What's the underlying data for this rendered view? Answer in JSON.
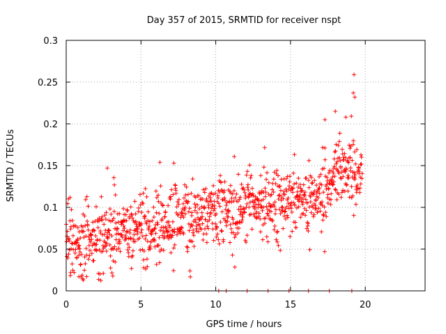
{
  "chart_data": {
    "type": "scatter",
    "title": "Day 357 of 2015, SRMTID for receiver nspt",
    "xlabel": "GPS time / hours",
    "ylabel": "SRMTID / TECUs",
    "xlim": [
      0,
      24
    ],
    "ylim": [
      0,
      0.3
    ],
    "xticks": [
      "0",
      "5",
      "10",
      "15",
      "20"
    ],
    "yticks": [
      "0",
      "0.05",
      "0.1",
      "0.15",
      "0.2",
      "0.25",
      "0.3"
    ],
    "grid": true,
    "marker": "+",
    "color": "#ff0000",
    "trend": [
      {
        "x": 0.0,
        "y": 0.06
      },
      {
        "x": 1.0,
        "y": 0.055
      },
      {
        "x": 2.0,
        "y": 0.062
      },
      {
        "x": 3.0,
        "y": 0.07
      },
      {
        "x": 4.0,
        "y": 0.072
      },
      {
        "x": 5.0,
        "y": 0.075
      },
      {
        "x": 6.0,
        "y": 0.078
      },
      {
        "x": 7.0,
        "y": 0.085
      },
      {
        "x": 8.0,
        "y": 0.088
      },
      {
        "x": 9.0,
        "y": 0.09
      },
      {
        "x": 10.0,
        "y": 0.093
      },
      {
        "x": 11.0,
        "y": 0.095
      },
      {
        "x": 12.0,
        "y": 0.1
      },
      {
        "x": 13.0,
        "y": 0.103
      },
      {
        "x": 14.0,
        "y": 0.105
      },
      {
        "x": 15.0,
        "y": 0.11
      },
      {
        "x": 16.0,
        "y": 0.108
      },
      {
        "x": 17.0,
        "y": 0.112
      },
      {
        "x": 18.0,
        "y": 0.14
      },
      {
        "x": 19.0,
        "y": 0.145
      },
      {
        "x": 19.8,
        "y": 0.14
      }
    ],
    "spread": 0.028,
    "samples_per_hour": 55,
    "x_end": 19.8,
    "notable_points": [
      {
        "x": 19.25,
        "y": 0.259
      },
      {
        "x": 19.2,
        "y": 0.237
      },
      {
        "x": 19.3,
        "y": 0.232
      },
      {
        "x": 18.0,
        "y": 0.215
      },
      {
        "x": 18.7,
        "y": 0.208
      },
      {
        "x": 17.3,
        "y": 0.205
      },
      {
        "x": 2.75,
        "y": 0.147
      },
      {
        "x": 7.2,
        "y": 0.153
      },
      {
        "x": 0.85,
        "y": 0.017
      },
      {
        "x": 0.3,
        "y": 0.022
      }
    ],
    "zero_points_x": [
      10.2,
      10.7,
      12.1,
      13.5,
      14.9,
      16.2,
      17.6,
      19.1
    ]
  }
}
